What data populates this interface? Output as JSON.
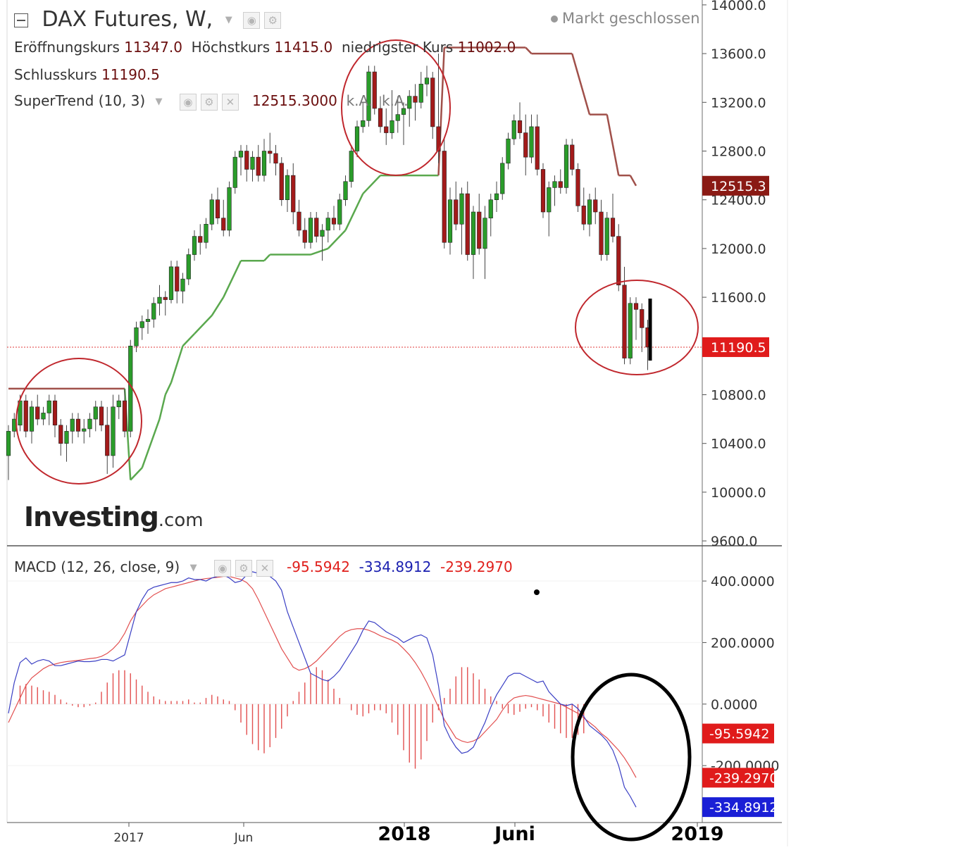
{
  "header": {
    "symbol": "DAX Futures, W,",
    "market_status": "Markt geschlossen",
    "ohlc": {
      "open_label": "Eröffnungskurs",
      "open": "11347.0",
      "high_label": "Höchstkurs",
      "high": "11415.0",
      "low_label": "niedrigster Kurs",
      "low": "11002.0",
      "close_label": "Schlusskurs",
      "close": "11190.5"
    },
    "indicator": {
      "label": "SuperTrend (10, 3)",
      "value": "12515.3000",
      "na1": "k.A.",
      "na2": "k.A."
    }
  },
  "macd_header": {
    "label": "MACD (12, 26, close, 9)",
    "hist": "-95.5942",
    "macd": "-334.8912",
    "signal": "-239.2970"
  },
  "icons": [
    "collapse-icon",
    "dropdown-caret-icon",
    "eye-icon",
    "gear-icon",
    "close-icon"
  ],
  "watermark": {
    "brand": "Investing",
    "suffix": ".com"
  },
  "colors": {
    "bull": "#2a9c2a",
    "bear": "#a31a1a",
    "supertrend_up": "#5aa84e",
    "supertrend_down": "#a0504a",
    "macd_line": "#3a3fc4",
    "signal_line": "#e25050",
    "hist": "#e25050"
  },
  "chart_data": [
    {
      "type": "candlestick",
      "title": "DAX Futures, W,",
      "x_ticks": [
        "2017",
        "Jun",
        "2018",
        "Juni",
        "2019"
      ],
      "y_ticks": [
        "14000.0",
        "13600.0",
        "13200.0",
        "12800.0",
        "12400.0",
        "12000.0",
        "11600.0",
        "11200.0",
        "10800.0",
        "10400.0",
        "10000.0",
        "9600.0"
      ],
      "ylim": [
        9560,
        14040
      ],
      "last_price": 11190.5,
      "last_price_label": "11190.5",
      "supertrend_value": 12515.3,
      "supertrend_label": "12515.3",
      "ohlc": [
        [
          10300,
          10550,
          10100,
          10500
        ],
        [
          10500,
          10650,
          10450,
          10600
        ],
        [
          10550,
          10800,
          10500,
          10750
        ],
        [
          10750,
          10800,
          10450,
          10500
        ],
        [
          10500,
          10750,
          10400,
          10700
        ],
        [
          10700,
          10800,
          10550,
          10600
        ],
        [
          10600,
          10700,
          10550,
          10650
        ],
        [
          10650,
          10800,
          10550,
          10750
        ],
        [
          10750,
          10800,
          10450,
          10550
        ],
        [
          10550,
          10600,
          10300,
          10400
        ],
        [
          10400,
          10550,
          10250,
          10500
        ],
        [
          10500,
          10650,
          10400,
          10600
        ],
        [
          10600,
          10650,
          10450,
          10500
        ],
        [
          10500,
          10600,
          10400,
          10520
        ],
        [
          10520,
          10650,
          10450,
          10600
        ],
        [
          10600,
          10750,
          10500,
          10700
        ],
        [
          10700,
          10750,
          10500,
          10550
        ],
        [
          10550,
          10700,
          10150,
          10300
        ],
        [
          10300,
          10800,
          10200,
          10700
        ],
        [
          10700,
          10800,
          10600,
          10750
        ],
        [
          10750,
          10850,
          10450,
          10500
        ],
        [
          10500,
          11250,
          10450,
          11200
        ],
        [
          11200,
          11400,
          11150,
          11350
        ],
        [
          11350,
          11450,
          11250,
          11400
        ],
        [
          11400,
          11500,
          11300,
          11420
        ],
        [
          11420,
          11600,
          11350,
          11550
        ],
        [
          11550,
          11700,
          11450,
          11600
        ],
        [
          11600,
          11650,
          11450,
          11580
        ],
        [
          11580,
          11900,
          11550,
          11850
        ],
        [
          11850,
          11900,
          11550,
          11650
        ],
        [
          11650,
          11800,
          11550,
          11750
        ],
        [
          11750,
          12000,
          11700,
          11950
        ],
        [
          11950,
          12150,
          11900,
          12100
        ],
        [
          12100,
          12200,
          11950,
          12050
        ],
        [
          12050,
          12250,
          12000,
          12200
        ],
        [
          12200,
          12450,
          12150,
          12400
        ],
        [
          12400,
          12500,
          12200,
          12250
        ],
        [
          12250,
          12400,
          12100,
          12150
        ],
        [
          12150,
          12550,
          12100,
          12500
        ],
        [
          12500,
          12800,
          12450,
          12750
        ],
        [
          12750,
          12850,
          12600,
          12800
        ],
        [
          12800,
          12850,
          12550,
          12650
        ],
        [
          12650,
          12800,
          12550,
          12750
        ],
        [
          12750,
          12850,
          12550,
          12600
        ],
        [
          12600,
          12900,
          12550,
          12800
        ],
        [
          12800,
          12950,
          12700,
          12780
        ],
        [
          12780,
          12850,
          12600,
          12700
        ],
        [
          12700,
          12750,
          12350,
          12400
        ],
        [
          12400,
          12650,
          12300,
          12600
        ],
        [
          12600,
          12700,
          12200,
          12300
        ],
        [
          12300,
          12400,
          12100,
          12150
        ],
        [
          12150,
          12250,
          12000,
          12050
        ],
        [
          12050,
          12300,
          12000,
          12250
        ],
        [
          12250,
          12300,
          12050,
          12100
        ],
        [
          12100,
          12200,
          11900,
          12150
        ],
        [
          12150,
          12300,
          12050,
          12250
        ],
        [
          12250,
          12350,
          12150,
          12200
        ],
        [
          12200,
          12450,
          12150,
          12400
        ],
        [
          12400,
          12600,
          12350,
          12550
        ],
        [
          12550,
          12850,
          12500,
          12800
        ],
        [
          12800,
          13050,
          12750,
          13000
        ],
        [
          13000,
          13200,
          12950,
          13050
        ],
        [
          13050,
          13500,
          13000,
          13450
        ],
        [
          13450,
          13500,
          13100,
          13150
        ],
        [
          13150,
          13250,
          12950,
          13000
        ],
        [
          13000,
          13150,
          12850,
          12950
        ],
        [
          12950,
          13300,
          12900,
          13050
        ],
        [
          13050,
          13250,
          12950,
          13100
        ],
        [
          13100,
          13200,
          12850,
          13150
        ],
        [
          13150,
          13300,
          13000,
          13250
        ],
        [
          13250,
          13350,
          13050,
          13200
        ],
        [
          13200,
          13450,
          13150,
          13350
        ],
        [
          13350,
          13500,
          13250,
          13400
        ],
        [
          13400,
          13450,
          12900,
          13000
        ],
        [
          13000,
          13600,
          12700,
          12800
        ],
        [
          12800,
          12900,
          12000,
          12050
        ],
        [
          12050,
          12500,
          11950,
          12400
        ],
        [
          12400,
          12550,
          12150,
          12200
        ],
        [
          12200,
          12500,
          11950,
          12450
        ],
        [
          12450,
          12550,
          11900,
          11950
        ],
        [
          11950,
          12350,
          11750,
          12300
        ],
        [
          12300,
          12450,
          11950,
          12000
        ],
        [
          12000,
          12350,
          11750,
          12250
        ],
        [
          12250,
          12450,
          12100,
          12400
        ],
        [
          12400,
          12550,
          12300,
          12450
        ],
        [
          12450,
          12750,
          12400,
          12700
        ],
        [
          12700,
          12950,
          12650,
          12900
        ],
        [
          12900,
          13100,
          12850,
          13050
        ],
        [
          13050,
          13200,
          12900,
          12950
        ],
        [
          12950,
          13100,
          12600,
          12750
        ],
        [
          12750,
          13100,
          12700,
          13000
        ],
        [
          13000,
          13100,
          12600,
          12650
        ],
        [
          12650,
          12700,
          12250,
          12300
        ],
        [
          12300,
          12550,
          12100,
          12500
        ],
        [
          12500,
          12600,
          12350,
          12550
        ],
        [
          12550,
          12650,
          12450,
          12500
        ],
        [
          12500,
          12900,
          12450,
          12850
        ],
        [
          12850,
          12900,
          12600,
          12650
        ],
        [
          12650,
          12700,
          12300,
          12350
        ],
        [
          12350,
          12500,
          12150,
          12200
        ],
        [
          12200,
          12450,
          12100,
          12400
        ],
        [
          12400,
          12500,
          12200,
          12300
        ],
        [
          12300,
          12400,
          11900,
          11950
        ],
        [
          11950,
          12300,
          11900,
          12250
        ],
        [
          12250,
          12450,
          12050,
          12100
        ],
        [
          12100,
          12200,
          11650,
          11700
        ],
        [
          11700,
          11850,
          11050,
          11100
        ],
        [
          11100,
          11600,
          11050,
          11550
        ],
        [
          11550,
          11600,
          11250,
          11500
        ],
        [
          11500,
          11550,
          11150,
          11350
        ],
        [
          11350,
          11415,
          11002,
          11190.5
        ]
      ],
      "supertrend": [
        [
          0,
          10850,
          "down"
        ],
        [
          20,
          10850,
          "down"
        ],
        [
          21,
          10100,
          "up"
        ],
        [
          23,
          10200,
          "up"
        ],
        [
          26,
          10600,
          "up"
        ],
        [
          27,
          10800,
          "up"
        ],
        [
          28,
          10900,
          "up"
        ],
        [
          30,
          11200,
          "up"
        ],
        [
          32,
          11300,
          "up"
        ],
        [
          35,
          11450,
          "up"
        ],
        [
          37,
          11600,
          "up"
        ],
        [
          40,
          11900,
          "up"
        ],
        [
          44,
          11900,
          "up"
        ],
        [
          45,
          11950,
          "up"
        ],
        [
          52,
          11950,
          "up"
        ],
        [
          55,
          12000,
          "up"
        ],
        [
          58,
          12150,
          "up"
        ],
        [
          61,
          12450,
          "up"
        ],
        [
          64,
          12600,
          "up"
        ],
        [
          74,
          12600,
          "up"
        ],
        [
          75,
          13650,
          "down"
        ],
        [
          89,
          13650,
          "down"
        ],
        [
          90,
          13600,
          "down"
        ],
        [
          97,
          13600,
          "down"
        ],
        [
          100,
          13100,
          "down"
        ],
        [
          103,
          13100,
          "down"
        ],
        [
          105,
          12600,
          "down"
        ],
        [
          107,
          12600,
          "down"
        ],
        [
          108,
          12515.3,
          "down"
        ]
      ]
    },
    {
      "type": "line",
      "title": "MACD (12, 26, close, 9)",
      "y_ticks": [
        "400.0000",
        "200.0000",
        "0.0000",
        "-200.0000"
      ],
      "ylim": [
        -385,
        510
      ],
      "series": [
        {
          "name": "macd",
          "last_label": "-334.8912",
          "values": [
            -30,
            70,
            135,
            150,
            130,
            140,
            145,
            140,
            125,
            125,
            130,
            135,
            140,
            138,
            138,
            140,
            145,
            145,
            140,
            150,
            160,
            230,
            300,
            340,
            370,
            380,
            385,
            390,
            395,
            395,
            400,
            410,
            405,
            405,
            400,
            410,
            415,
            420,
            410,
            395,
            400,
            420,
            430,
            425,
            420,
            415,
            400,
            370,
            300,
            250,
            200,
            150,
            100,
            90,
            80,
            75,
            90,
            110,
            140,
            170,
            200,
            240,
            270,
            265,
            250,
            235,
            225,
            215,
            200,
            210,
            220,
            225,
            215,
            160,
            60,
            -70,
            -110,
            -140,
            -160,
            -155,
            -140,
            -100,
            -60,
            -10,
            30,
            60,
            90,
            100,
            100,
            90,
            80,
            70,
            75,
            40,
            20,
            0,
            -5,
            0,
            -15,
            -40,
            -70,
            -85,
            -100,
            -120,
            -150,
            -200,
            -270,
            -300,
            -335
          ]
        },
        {
          "name": "signal",
          "last_label": "-239.2970",
          "values": [
            -60,
            -20,
            20,
            60,
            85,
            100,
            115,
            125,
            130,
            135,
            138,
            140,
            142,
            145,
            148,
            150,
            155,
            165,
            180,
            200,
            230,
            270,
            300,
            320,
            340,
            355,
            365,
            375,
            380,
            385,
            390,
            395,
            400,
            405,
            408,
            410,
            412,
            415,
            415,
            410,
            405,
            395,
            375,
            340,
            300,
            260,
            220,
            180,
            150,
            120,
            110,
            115,
            125,
            140,
            160,
            180,
            200,
            220,
            235,
            242,
            245,
            245,
            240,
            232,
            222,
            215,
            208,
            198,
            180,
            160,
            135,
            105,
            70,
            30,
            -10,
            -50,
            -80,
            -110,
            -120,
            -125,
            -120,
            -110,
            -90,
            -70,
            -50,
            -20,
            5,
            20,
            25,
            28,
            25,
            20,
            15,
            10,
            5,
            0,
            -10,
            -20,
            -30,
            -45,
            -60,
            -75,
            -95,
            -110,
            -130,
            -150,
            -175,
            -205,
            -239
          ]
        }
      ],
      "histogram": [
        60,
        65,
        60,
        55,
        45,
        40,
        30,
        15,
        5,
        -5,
        -10,
        -10,
        -5,
        5,
        40,
        70,
        100,
        110,
        110,
        100,
        80,
        60,
        40,
        25,
        15,
        10,
        10,
        10,
        10,
        15,
        5,
        5,
        20,
        30,
        25,
        15,
        10,
        -20,
        -60,
        -100,
        -130,
        -150,
        -160,
        -140,
        -110,
        -80,
        -40,
        10,
        40,
        70,
        100,
        120,
        110,
        80,
        50,
        20,
        0,
        -20,
        -35,
        -40,
        -30,
        -20,
        -20,
        -30,
        -60,
        -100,
        -150,
        -190,
        -210,
        -180,
        -120,
        -60,
        -20,
        20,
        50,
        90,
        120,
        120,
        100,
        80,
        50,
        25,
        10,
        -15,
        -30,
        -35,
        -25,
        -15,
        -10,
        -20,
        -40,
        -60,
        -80,
        -95,
        -110,
        -110,
        -100,
        -95
      ]
    }
  ]
}
